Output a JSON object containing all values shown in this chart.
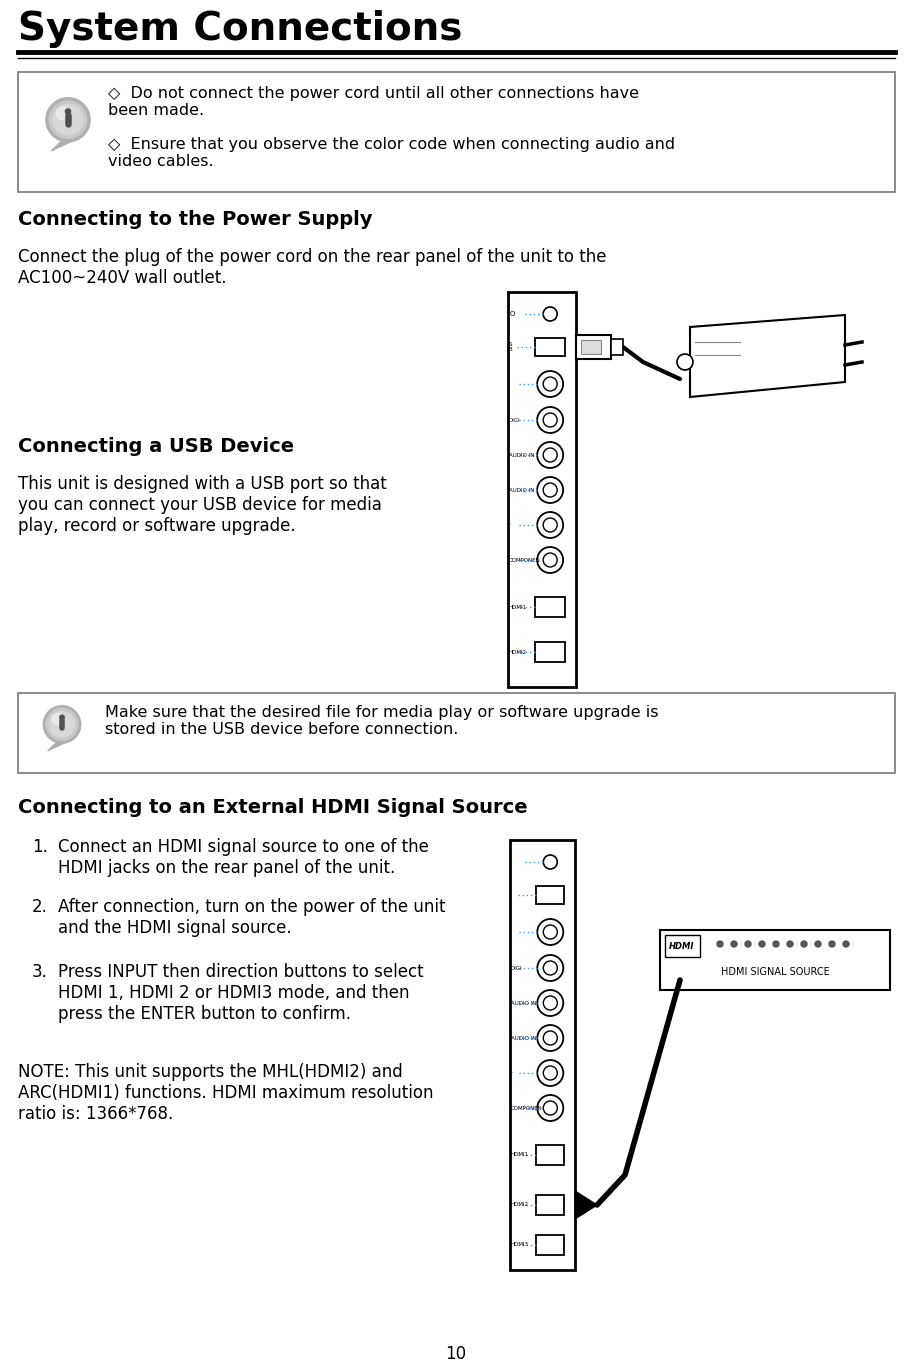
{
  "title": "System Connections",
  "page_number": "10",
  "bg_color": "#ffffff",
  "title_color": "#000000",
  "note_box1_bullets": [
    "Do not connect the power cord until all other connections have\nbeen made.",
    "Ensure that you observe the color code when connecting audio and\nvideo cables."
  ],
  "section1_heading": "Connecting to the Power Supply",
  "section1_text": "Connect the plug of the power cord on the rear panel of the unit to the\nAC100~240V wall outlet.",
  "section2_heading": "Connecting a USB Device",
  "section2_text": "This unit is designed with a USB port so that\nyou can connect your USB device for media\nplay, record or software upgrade.",
  "note_box2_text": "Make sure that the desired file for media play or software upgrade is\nstored in the USB device before connection.",
  "section3_heading": "Connecting to an External HDMI Signal Source",
  "section3_items": [
    "Connect an HDMI signal source to one of the\nHDMI jacks on the rear panel of the unit.",
    "After connection, turn on the power of the unit\nand the HDMI signal source.",
    "Press INPUT then direction buttons to select\nHDMI 1, HDMI 2 or HDMI3 mode, and then\npress the ENTER button to confirm."
  ],
  "note_text": "NOTE: This unit supports the MHL(HDMI2) and\nARC(HDMI1) functions. HDMI maximum resolution\nratio is: 1366*768.",
  "heading_color": "#000000",
  "text_color": "#000000"
}
